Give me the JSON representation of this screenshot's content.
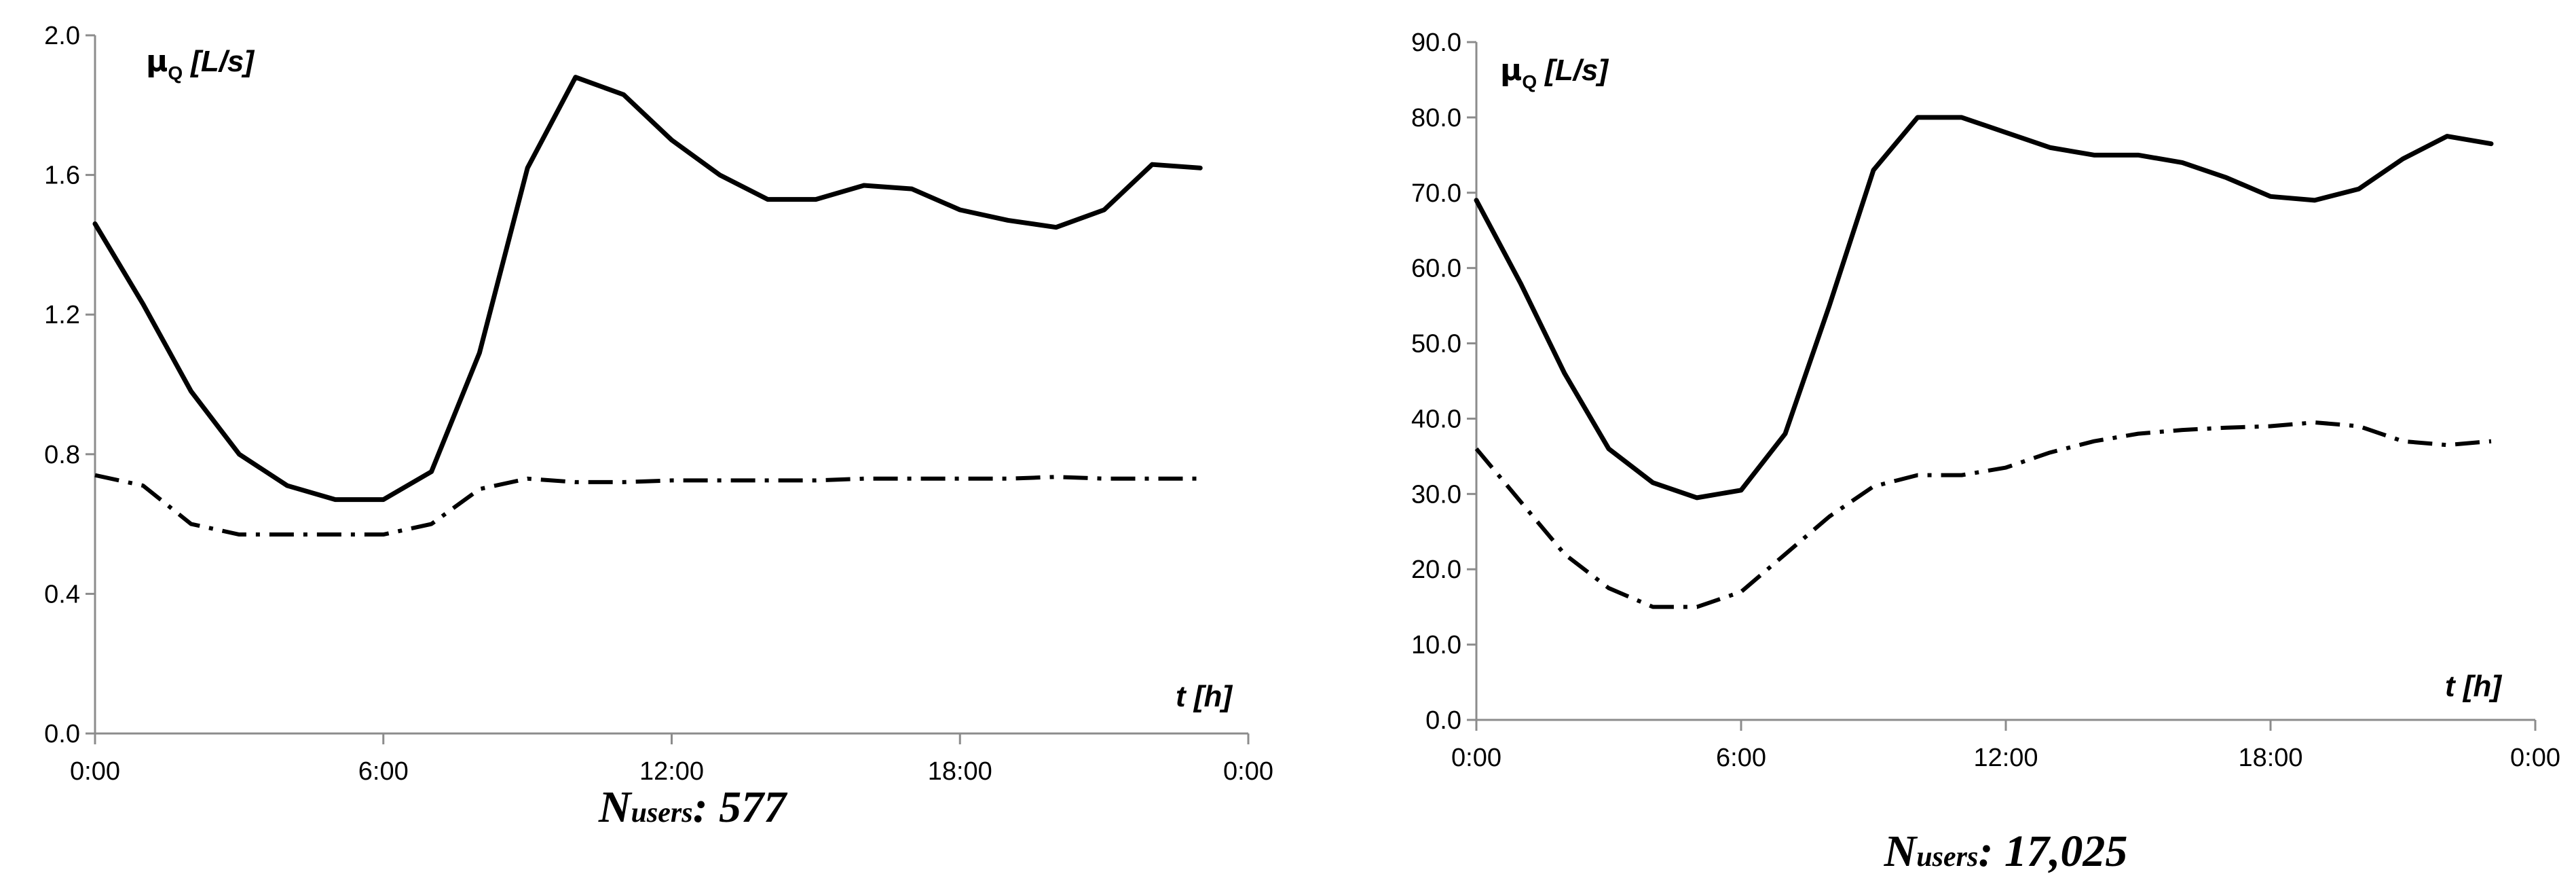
{
  "chart_data": [
    {
      "type": "line",
      "ylabel_symbol": "μ",
      "ylabel_sub": "Q",
      "ylabel_unit": "[L/s]",
      "xlabel": "t [h]",
      "ylim": [
        0,
        2
      ],
      "yticks": [
        "0.0",
        "0.4",
        "0.8",
        "1.2",
        "1.6",
        "2.0"
      ],
      "xlim": [
        0,
        24
      ],
      "xticks": [
        "0:00",
        "6:00",
        "12:00",
        "18:00",
        "0:00"
      ],
      "x": [
        0,
        1,
        2,
        3,
        4,
        5,
        6,
        7,
        8,
        9,
        10,
        11,
        12,
        13,
        14,
        15,
        16,
        17,
        18,
        19,
        20,
        21,
        22,
        23
      ],
      "series": [
        {
          "name": "solid",
          "values": [
            1.46,
            1.23,
            0.98,
            0.8,
            0.71,
            0.67,
            0.67,
            0.75,
            1.09,
            1.62,
            1.88,
            1.83,
            1.7,
            1.6,
            1.53,
            1.53,
            1.57,
            1.56,
            1.5,
            1.47,
            1.45,
            1.5,
            1.63,
            1.62
          ]
        },
        {
          "name": "dash-dot",
          "values": [
            0.74,
            0.71,
            0.6,
            0.57,
            0.57,
            0.57,
            0.57,
            0.6,
            0.7,
            0.73,
            0.72,
            0.72,
            0.725,
            0.725,
            0.725,
            0.725,
            0.73,
            0.73,
            0.73,
            0.73,
            0.735,
            0.73,
            0.73,
            0.73
          ]
        }
      ],
      "caption_main": "N",
      "caption_sub": "users",
      "caption_rest": ": 577"
    },
    {
      "type": "line",
      "ylabel_symbol": "μ",
      "ylabel_sub": "Q",
      "ylabel_unit": "[L/s]",
      "xlabel": "t [h]",
      "ylim": [
        0,
        90
      ],
      "yticks": [
        "0.0",
        "10.0",
        "20.0",
        "30.0",
        "40.0",
        "50.0",
        "60.0",
        "70.0",
        "80.0",
        "90.0"
      ],
      "xlim": [
        0,
        24
      ],
      "xticks": [
        "0:00",
        "6:00",
        "12:00",
        "18:00",
        "0:00"
      ],
      "x": [
        0,
        1,
        2,
        3,
        4,
        5,
        6,
        7,
        8,
        9,
        10,
        11,
        12,
        13,
        14,
        15,
        16,
        17,
        18,
        19,
        20,
        21,
        22,
        23
      ],
      "series": [
        {
          "name": "solid",
          "values": [
            69,
            58,
            46,
            36,
            31.5,
            29.5,
            30.5,
            38,
            55,
            73,
            80,
            80,
            78,
            76,
            75,
            75,
            74,
            72,
            69.5,
            69,
            70.5,
            74.5,
            77.5,
            76.5
          ]
        },
        {
          "name": "dash-dot",
          "values": [
            36,
            29,
            22,
            17.5,
            15,
            15,
            17,
            22,
            27,
            31,
            32.5,
            32.5,
            33.5,
            35.5,
            37,
            38,
            38.5,
            38.8,
            39,
            39.5,
            39,
            37,
            36.5,
            37
          ]
        }
      ],
      "caption_main": "N",
      "caption_sub": "users",
      "caption_rest": ": 17,025"
    }
  ]
}
